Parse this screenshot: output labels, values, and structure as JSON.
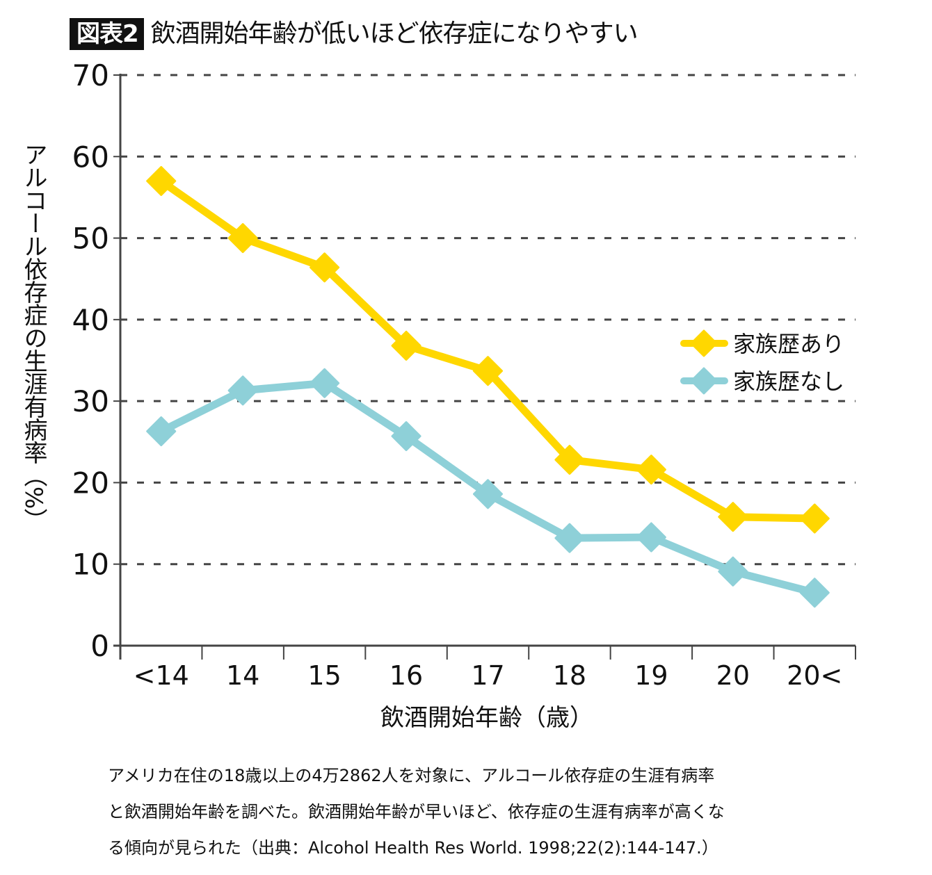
{
  "figure": {
    "badge": "図表2",
    "title": "飲酒開始年齢が低いほど依存症になりやすい"
  },
  "caption": {
    "lines": [
      "アメリカ在住の18歳以上の4万2862人を対象に、アルコール依存症の生涯有病率",
      "と飲酒開始年齢を調べた。飲酒開始年齢が早いほど、依存症の生涯有病率が高くな",
      "る傾向が見られた（出典：Alcohol Health Res World. 1998;22(2):144-147.）"
    ]
  },
  "chart_data": {
    "type": "line",
    "title": "飲酒開始年齢が低いほど依存症になりやすい",
    "xlabel": "飲酒開始年齢（歳）",
    "ylabel": "アルコール依存症の生涯有病率（%）",
    "categories": [
      "<14",
      "14",
      "15",
      "16",
      "17",
      "18",
      "19",
      "20",
      "20<"
    ],
    "ylim": [
      0,
      70
    ],
    "yticks": [
      0,
      10,
      20,
      30,
      40,
      50,
      60,
      70
    ],
    "grid": true,
    "legend_position": "right-middle",
    "series": [
      {
        "name": "家族歴あり",
        "color": "#FFD700",
        "marker": "diamond",
        "values": [
          57.0,
          50.0,
          46.4,
          36.8,
          33.7,
          22.8,
          21.6,
          15.8,
          15.6
        ]
      },
      {
        "name": "家族歴なし",
        "color": "#8ED0D8",
        "marker": "diamond",
        "values": [
          26.3,
          31.3,
          32.2,
          25.7,
          18.6,
          13.2,
          13.3,
          9.1,
          6.5
        ]
      }
    ]
  }
}
